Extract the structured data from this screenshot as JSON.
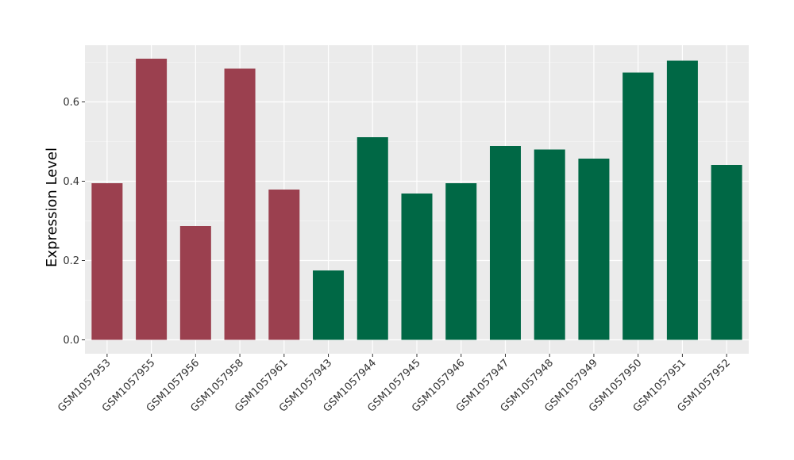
{
  "chart_data": {
    "type": "bar",
    "title": "",
    "xlabel": "",
    "ylabel": "Expression Level",
    "ylim": [
      0,
      0.75
    ],
    "yticks": [
      0.0,
      0.2,
      0.4,
      0.6
    ],
    "ytick_labels": [
      "0.0",
      "0.2",
      "0.4",
      "0.6"
    ],
    "grid": true,
    "legend": "none",
    "categories": [
      "GSM1057953",
      "GSM1057955",
      "GSM1057956",
      "GSM1057958",
      "GSM1057961",
      "GSM1057943",
      "GSM1057944",
      "GSM1057945",
      "GSM1057946",
      "GSM1057947",
      "GSM1057948",
      "GSM1057949",
      "GSM1057950",
      "GSM1057951",
      "GSM1057952"
    ],
    "values": [
      0.395,
      0.709,
      0.287,
      0.684,
      0.379,
      0.175,
      0.511,
      0.369,
      0.395,
      0.489,
      0.48,
      0.457,
      0.674,
      0.704,
      0.441
    ],
    "groups": [
      0,
      0,
      0,
      0,
      0,
      1,
      1,
      1,
      1,
      1,
      1,
      1,
      1,
      1,
      1
    ],
    "colors": {
      "group_colors": [
        "#9b404f",
        "#006845"
      ],
      "panel_background": "#ebebeb",
      "grid_major": "#ffffff",
      "tick_color": "#333333"
    }
  }
}
